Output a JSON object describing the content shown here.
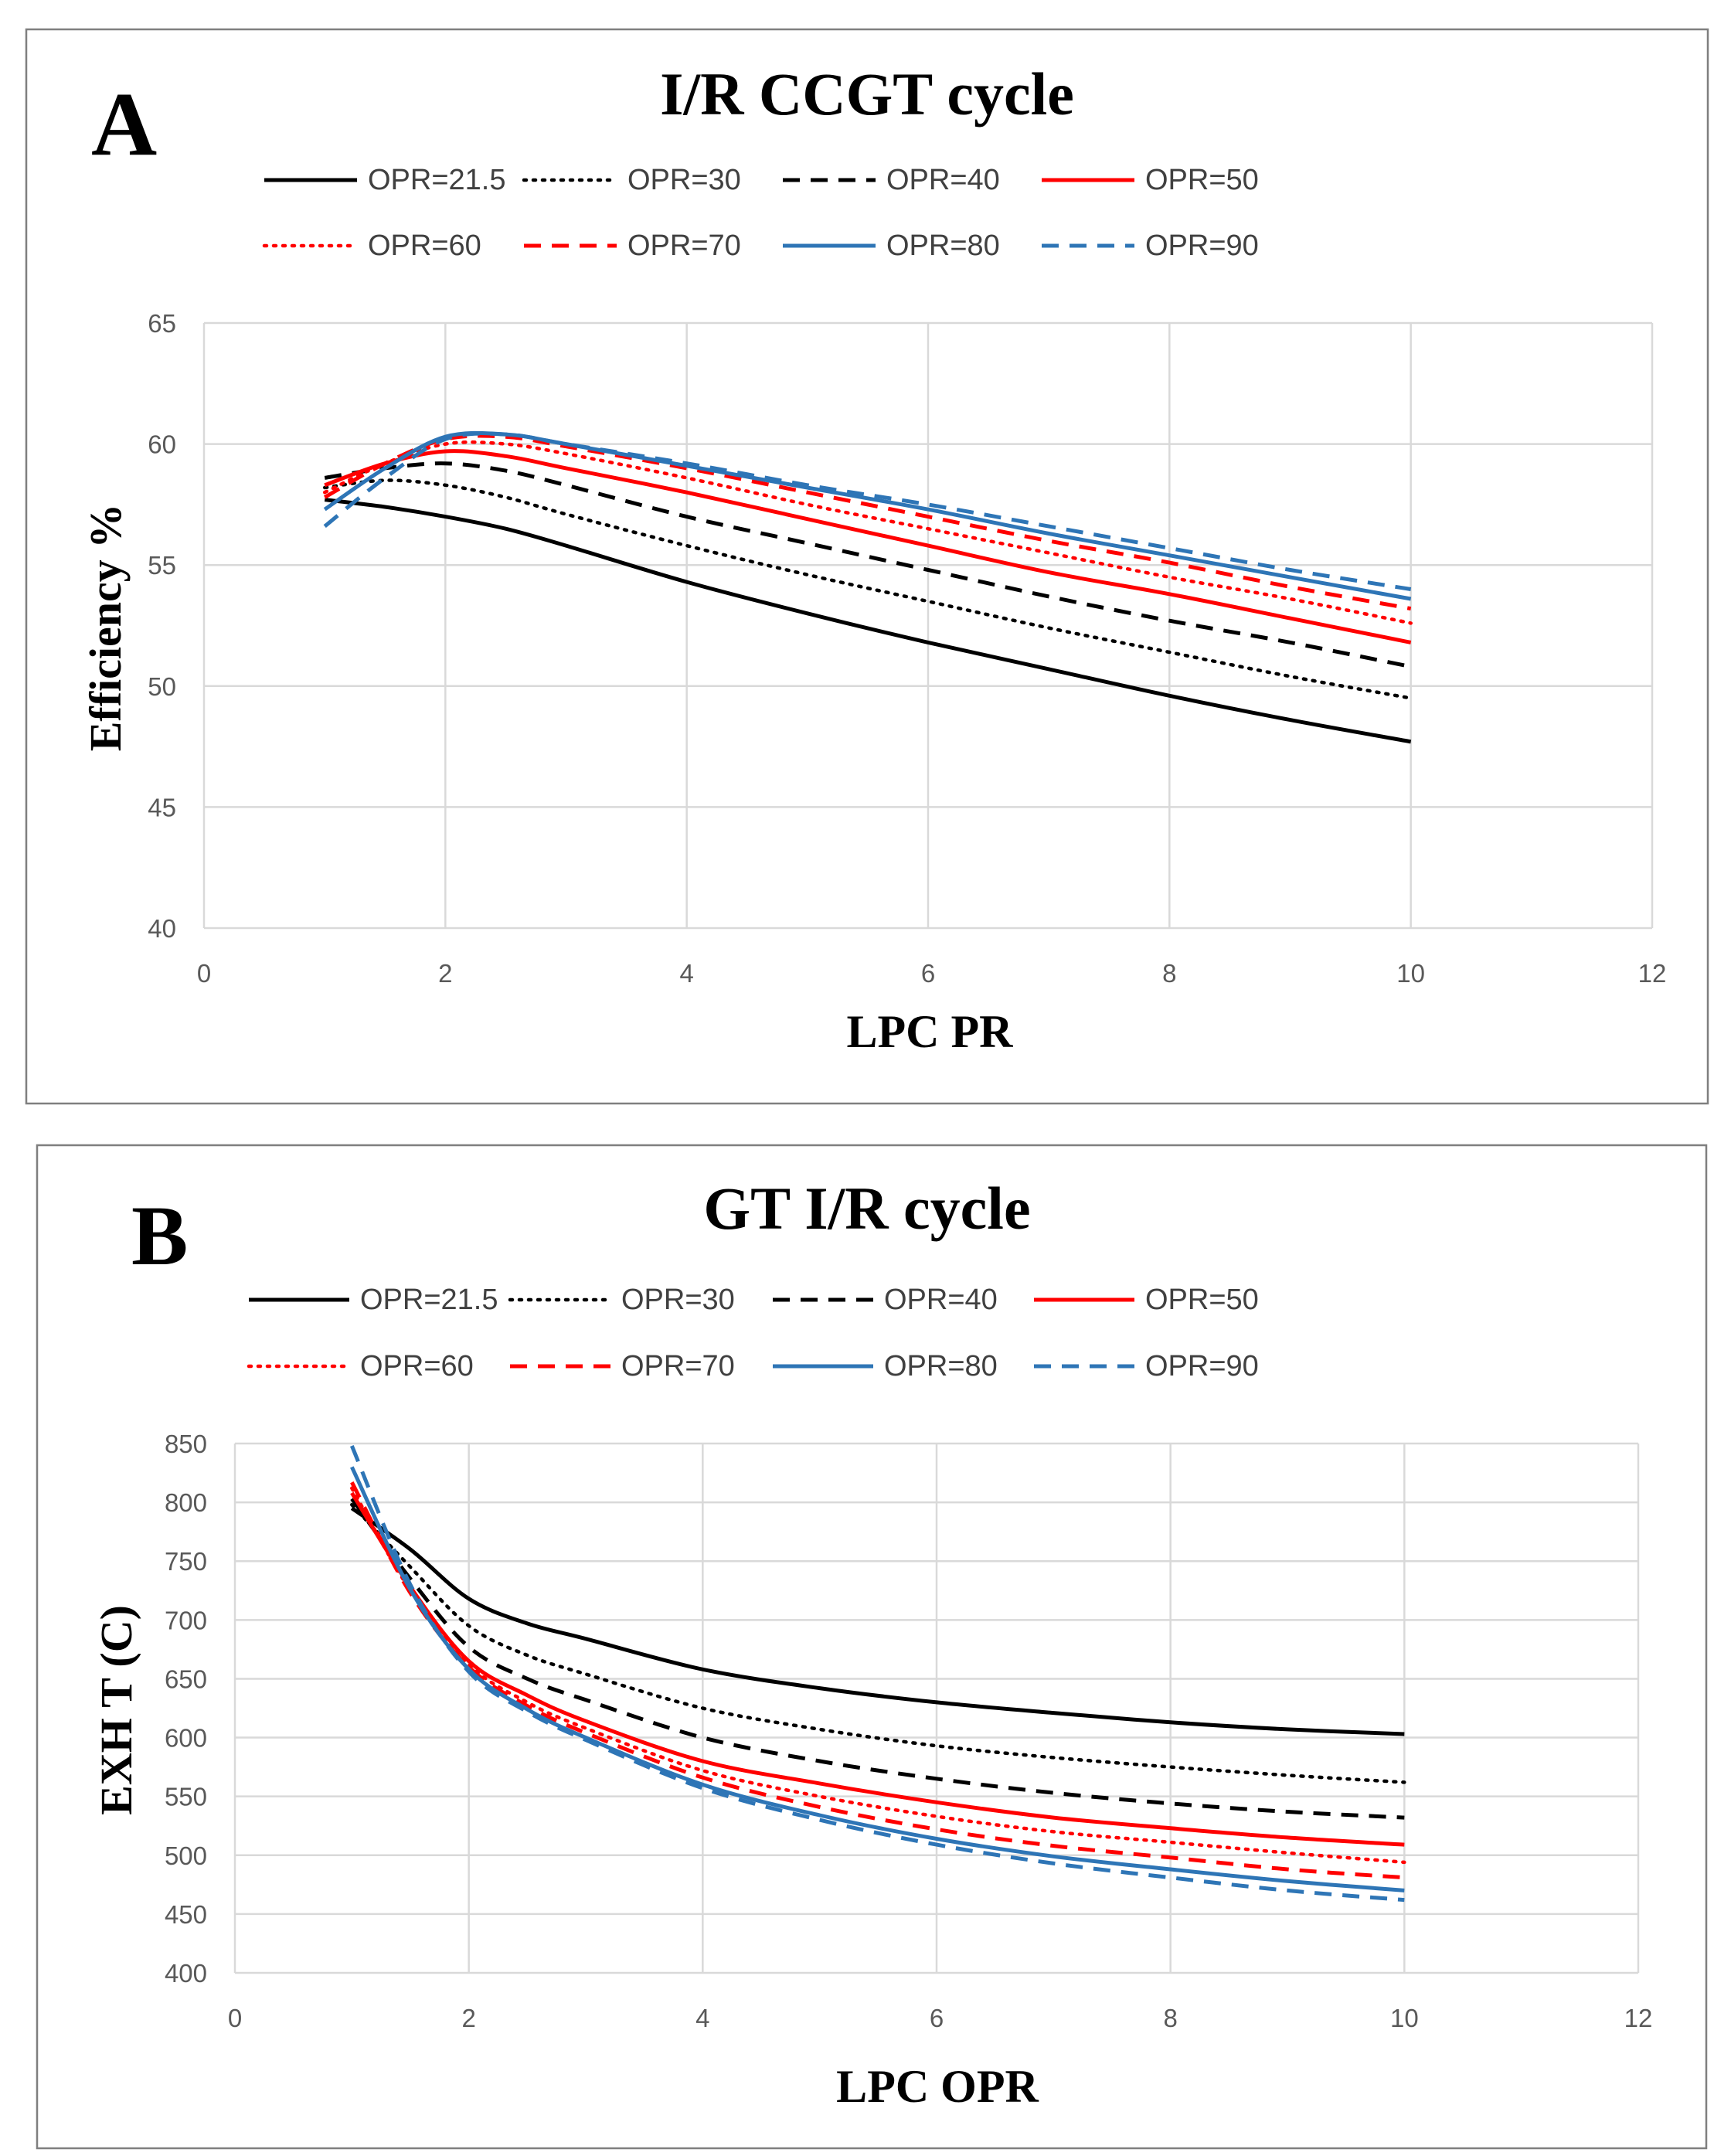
{
  "chart_data": [
    {
      "panel_label": "A",
      "type": "line",
      "title": "I/R CCGT cycle",
      "xlabel": "LPC PR",
      "ylabel": "Efficiency %",
      "xlim": [
        0,
        12
      ],
      "ylim": [
        40,
        65
      ],
      "xticks": [
        0,
        2,
        4,
        6,
        8,
        10,
        12
      ],
      "yticks": [
        40,
        45,
        50,
        55,
        60,
        65
      ],
      "grid": true,
      "legend_position": "top",
      "series": [
        {
          "name": "OPR=21.5",
          "color": "#000000",
          "dash": "solid",
          "x": [
            1,
            1.5,
            2,
            2.5,
            3,
            4,
            5,
            6,
            7,
            8,
            9,
            10
          ],
          "y": [
            57.7,
            57.4,
            57.0,
            56.5,
            55.8,
            54.3,
            53.0,
            51.8,
            50.7,
            49.6,
            48.6,
            47.7
          ]
        },
        {
          "name": "OPR=30",
          "color": "#000000",
          "dash": "dot",
          "x": [
            1,
            1.5,
            2,
            2.5,
            3,
            4,
            5,
            6,
            7,
            8,
            9,
            10
          ],
          "y": [
            58.2,
            58.5,
            58.3,
            57.8,
            57.1,
            55.8,
            54.6,
            53.5,
            52.4,
            51.4,
            50.4,
            49.5
          ]
        },
        {
          "name": "OPR=40",
          "color": "#000000",
          "dash": "dash",
          "x": [
            1,
            1.5,
            2,
            2.5,
            3,
            4,
            5,
            6,
            7,
            8,
            9,
            10
          ],
          "y": [
            58.6,
            59.0,
            59.2,
            58.9,
            58.3,
            57.0,
            55.9,
            54.8,
            53.7,
            52.7,
            51.8,
            50.8
          ]
        },
        {
          "name": "OPR=50",
          "color": "#ff0000",
          "dash": "solid",
          "x": [
            1,
            1.5,
            2,
            2.5,
            3,
            4,
            5,
            6,
            7,
            8,
            9,
            10
          ],
          "y": [
            58.3,
            59.2,
            59.7,
            59.5,
            59.0,
            58.0,
            56.9,
            55.8,
            54.7,
            53.8,
            52.8,
            51.8
          ]
        },
        {
          "name": "OPR=60",
          "color": "#ff0000",
          "dash": "dot",
          "x": [
            1,
            1.5,
            2,
            2.5,
            3,
            4,
            5,
            6,
            7,
            8,
            9,
            10
          ],
          "y": [
            58.0,
            59.2,
            60.0,
            60.0,
            59.6,
            58.6,
            57.5,
            56.5,
            55.5,
            54.5,
            53.6,
            52.6
          ]
        },
        {
          "name": "OPR=70",
          "color": "#ff0000",
          "dash": "dash",
          "x": [
            1,
            1.5,
            2,
            2.5,
            3,
            4,
            5,
            6,
            7,
            8,
            9,
            10
          ],
          "y": [
            57.8,
            59.2,
            60.2,
            60.3,
            59.9,
            59.0,
            58.0,
            57.0,
            56.0,
            55.1,
            54.1,
            53.2
          ]
        },
        {
          "name": "OPR=80",
          "color": "#2e75b6",
          "dash": "solid",
          "x": [
            1,
            1.5,
            2,
            2.5,
            3,
            4,
            5,
            6,
            7,
            8,
            9,
            10
          ],
          "y": [
            57.3,
            59.0,
            60.3,
            60.4,
            60.0,
            59.1,
            58.2,
            57.3,
            56.3,
            55.4,
            54.5,
            53.6
          ]
        },
        {
          "name": "OPR=90",
          "color": "#2e75b6",
          "dash": "dash",
          "x": [
            1,
            1.5,
            2,
            2.5,
            3,
            4,
            5,
            6,
            7,
            8,
            9,
            10
          ],
          "y": [
            56.6,
            58.6,
            60.2,
            60.4,
            60.0,
            59.2,
            58.3,
            57.5,
            56.6,
            55.7,
            54.8,
            54.0
          ]
        }
      ]
    },
    {
      "panel_label": "B",
      "type": "line",
      "title": "GT I/R cycle",
      "xlabel": "LPC OPR",
      "ylabel": "EXH T (C)",
      "xlim": [
        0,
        12
      ],
      "ylim": [
        400,
        850
      ],
      "xticks": [
        0,
        2,
        4,
        6,
        8,
        10,
        12
      ],
      "yticks": [
        400,
        450,
        500,
        550,
        600,
        650,
        700,
        750,
        800,
        850
      ],
      "grid": true,
      "legend_position": "top",
      "series": [
        {
          "name": "OPR=21.5",
          "color": "#000000",
          "dash": "solid",
          "x": [
            1,
            1.5,
            2,
            2.5,
            3,
            4,
            5,
            6,
            7,
            8,
            9,
            10
          ],
          "y": [
            795,
            760,
            718,
            697,
            684,
            658,
            642,
            630,
            621,
            613,
            607,
            603
          ]
        },
        {
          "name": "OPR=30",
          "color": "#000000",
          "dash": "dot",
          "x": [
            1,
            1.5,
            2,
            2.5,
            3,
            4,
            5,
            6,
            7,
            8,
            9,
            10
          ],
          "y": [
            798,
            745,
            695,
            670,
            654,
            625,
            607,
            593,
            583,
            575,
            568,
            562
          ]
        },
        {
          "name": "OPR=40",
          "color": "#000000",
          "dash": "dash",
          "x": [
            1,
            1.5,
            2,
            2.5,
            3,
            4,
            5,
            6,
            7,
            8,
            9,
            10
          ],
          "y": [
            803,
            735,
            677,
            650,
            632,
            600,
            580,
            565,
            553,
            544,
            537,
            532
          ]
        },
        {
          "name": "OPR=50",
          "color": "#ff0000",
          "dash": "solid",
          "x": [
            1,
            1.5,
            2,
            2.5,
            3,
            4,
            5,
            6,
            7,
            8,
            9,
            10
          ],
          "y": [
            808,
            728,
            665,
            636,
            614,
            580,
            561,
            545,
            532,
            523,
            515,
            509
          ]
        },
        {
          "name": "OPR=60",
          "color": "#ff0000",
          "dash": "dot",
          "x": [
            1,
            1.5,
            2,
            2.5,
            3,
            4,
            5,
            6,
            7,
            8,
            9,
            10
          ],
          "y": [
            812,
            725,
            662,
            630,
            608,
            572,
            550,
            533,
            520,
            511,
            502,
            494
          ]
        },
        {
          "name": "OPR=70",
          "color": "#ff0000",
          "dash": "dash",
          "x": [
            1,
            1.5,
            2,
            2.5,
            3,
            4,
            5,
            6,
            7,
            8,
            9,
            10
          ],
          "y": [
            817,
            723,
            660,
            627,
            604,
            566,
            541,
            522,
            508,
            498,
            488,
            481
          ]
        },
        {
          "name": "OPR=80",
          "color": "#2e75b6",
          "dash": "solid",
          "x": [
            1,
            1.5,
            2,
            2.5,
            3,
            4,
            5,
            6,
            7,
            8,
            9,
            10
          ],
          "y": [
            830,
            726,
            658,
            624,
            600,
            560,
            534,
            514,
            499,
            488,
            478,
            470
          ]
        },
        {
          "name": "OPR=90",
          "color": "#2e75b6",
          "dash": "dash",
          "x": [
            1,
            1.5,
            2,
            2.5,
            3,
            4,
            5,
            6,
            7,
            8,
            9,
            10
          ],
          "y": [
            848,
            730,
            656,
            622,
            598,
            557,
            530,
            509,
            493,
            481,
            470,
            462
          ]
        }
      ]
    }
  ]
}
